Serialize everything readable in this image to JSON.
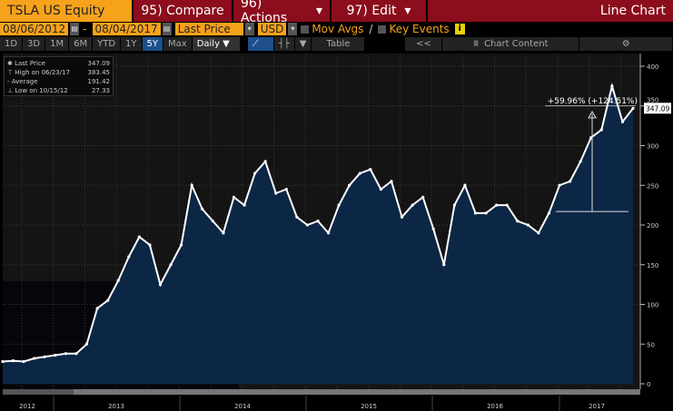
{
  "toolbar": {
    "ticker": "TSLA US Equity",
    "compare": "95) Compare",
    "actions": "96) Actions",
    "edit": "97) Edit",
    "chart_type": "Line Chart"
  },
  "range": {
    "start": "08/06/2012",
    "sep": "-",
    "end": "08/04/2017",
    "field": "Last Price",
    "currency": "USD",
    "mov_avgs": "Mov Avgs",
    "key_events": "Key Events",
    "info": "i"
  },
  "periods": [
    "1D",
    "3D",
    "1M",
    "6M",
    "YTD",
    "1Y",
    "5Y",
    "Max"
  ],
  "active_period": "5Y",
  "frequency": "Daily ▼",
  "table_label": "Table",
  "collapse": "<<",
  "chart_content": "Chart Content",
  "legend": [
    {
      "label": "Last Price",
      "value": "347.09"
    },
    {
      "label": "High on 06/23/17",
      "value": "383.45"
    },
    {
      "label": "Average",
      "value": "191.42"
    },
    {
      "label": "Low on 10/15/12",
      "value": "27.33"
    }
  ],
  "annotation": "+59.96% (+124.51%)",
  "last_price_tag": "347.09",
  "chart_data": {
    "type": "line",
    "title": "TSLA US Equity",
    "ylim": [
      0,
      400
    ],
    "yticks": [
      0,
      50,
      100,
      150,
      200,
      250,
      300,
      350,
      400
    ],
    "xlabels": [
      "2012",
      "2013",
      "2014",
      "2015",
      "2016",
      "2017"
    ],
    "x": [
      "2012-08",
      "2012-09",
      "2012-10",
      "2012-11",
      "2012-12",
      "2013-01",
      "2013-02",
      "2013-03",
      "2013-04",
      "2013-05",
      "2013-06",
      "2013-07",
      "2013-08",
      "2013-09",
      "2013-10",
      "2013-11",
      "2013-12",
      "2014-01",
      "2014-02",
      "2014-03",
      "2014-04",
      "2014-05",
      "2014-06",
      "2014-07",
      "2014-08",
      "2014-09",
      "2014-10",
      "2014-11",
      "2014-12",
      "2015-01",
      "2015-02",
      "2015-03",
      "2015-04",
      "2015-05",
      "2015-06",
      "2015-07",
      "2015-08",
      "2015-09",
      "2015-10",
      "2015-11",
      "2015-12",
      "2016-01",
      "2016-02",
      "2016-03",
      "2016-04",
      "2016-05",
      "2016-06",
      "2016-07",
      "2016-08",
      "2016-09",
      "2016-10",
      "2016-11",
      "2016-12",
      "2017-01",
      "2017-02",
      "2017-03",
      "2017-04",
      "2017-05",
      "2017-06",
      "2017-07",
      "2017-08"
    ],
    "values": [
      28,
      29,
      28,
      32,
      34,
      36,
      38,
      38,
      50,
      95,
      105,
      130,
      160,
      185,
      175,
      125,
      150,
      175,
      250,
      220,
      205,
      190,
      235,
      225,
      265,
      280,
      240,
      245,
      210,
      200,
      205,
      190,
      225,
      250,
      265,
      270,
      245,
      255,
      210,
      225,
      235,
      195,
      150,
      225,
      250,
      215,
      215,
      225,
      225,
      205,
      200,
      190,
      215,
      250,
      255,
      280,
      310,
      320,
      375,
      330,
      347
    ]
  }
}
